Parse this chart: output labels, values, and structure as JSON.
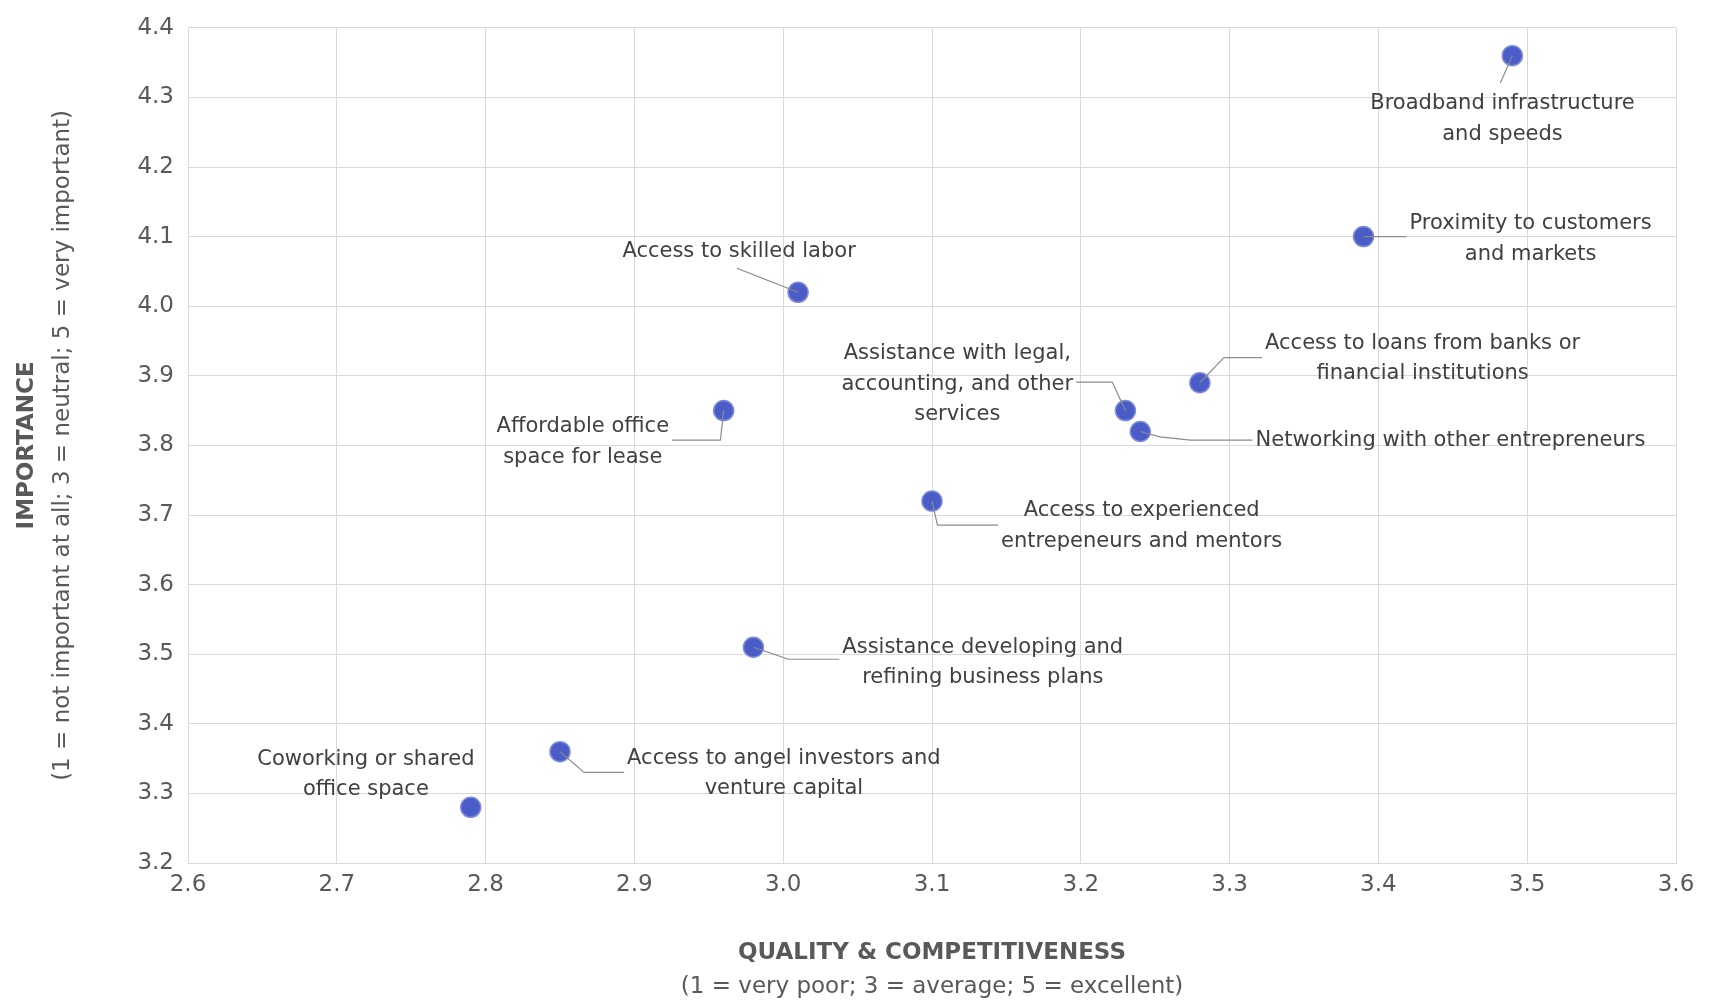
{
  "chart_data": {
    "type": "scatter",
    "xlabel": "QUALITY & COMPETITIVENESS\n(1 = very poor; 3 = average; 5 = excellent)",
    "ylabel": "IMPORTANCE\n(1 = not important at all; 3 = neutral; 5 = very important)",
    "x": [
      3.49,
      3.39,
      3.01,
      3.28,
      3.23,
      3.24,
      2.96,
      3.1,
      2.98,
      2.85,
      2.79
    ],
    "values": [
      4.36,
      4.1,
      4.02,
      3.89,
      3.85,
      3.82,
      3.85,
      3.72,
      3.51,
      3.36,
      3.28
    ],
    "color": "#4a5cc8",
    "marker": "circle",
    "xlim": [
      2.6,
      3.6
    ],
    "xticks": [
      2.6,
      2.7,
      2.8,
      2.9,
      {
        "value": 3,
        "label": "3.0"
      },
      3.1,
      3.2,
      3.3,
      3.4,
      3.5,
      3.6
    ],
    "ylim": [
      3.2,
      4.4
    ],
    "yticks": [
      3.2,
      3.3,
      3.4,
      3.5,
      3.6,
      3.7,
      3.8,
      3.9,
      {
        "value": 4,
        "label": "4.0"
      },
      4.1,
      4.2,
      4.3,
      4.4
    ],
    "grid": true,
    "annotations": [
      {
        "text": "Broadband infrastructure and speeds",
        "x": 3.49,
        "y": 4.36
      },
      {
        "text": "Proximity to customers and markets",
        "x": 3.39,
        "y": 4.1
      },
      {
        "text": "Access to skilled labor",
        "x": 3.01,
        "y": 4.02
      },
      {
        "text": "Access to loans from banks or financial institutions",
        "x": 3.28,
        "y": 3.89
      },
      {
        "text": "Assistance with legal, accounting, and other services",
        "x": 3.23,
        "y": 3.85
      },
      {
        "text": "Networking with other entrepreneurs",
        "x": 3.24,
        "y": 3.82
      },
      {
        "text": "Affordable office space for lease",
        "x": 2.96,
        "y": 3.85
      },
      {
        "text": "Access to experienced entrepeneurs and mentors",
        "x": 3.1,
        "y": 3.72
      },
      {
        "text": "Assistance developing and refining business plans",
        "x": 2.98,
        "y": 3.51
      },
      {
        "text": "Access to angel investors and venture capital",
        "x": 2.85,
        "y": 3.36
      },
      {
        "text": "Coworking or shared office space",
        "x": 2.79,
        "y": 3.28
      }
    ]
  }
}
